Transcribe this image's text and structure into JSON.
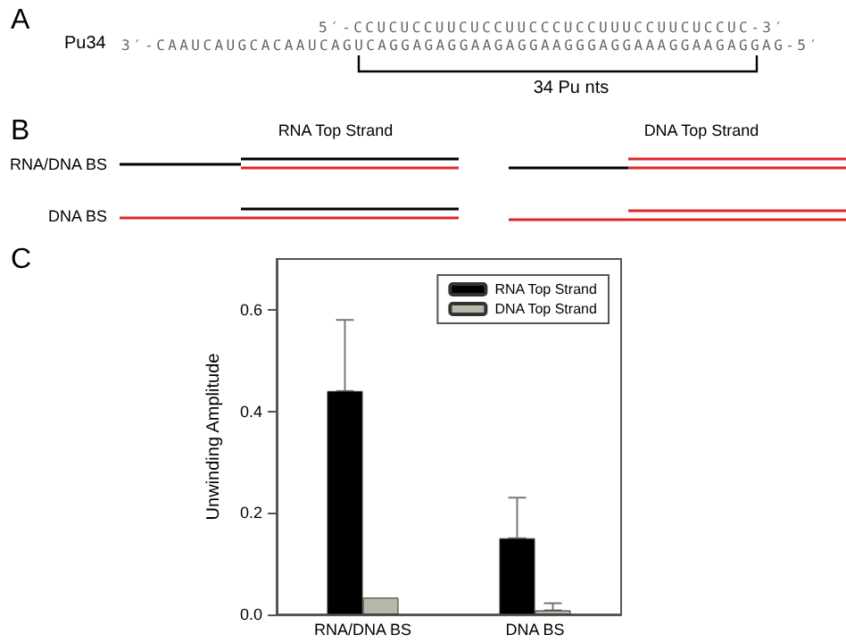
{
  "chart_data": {
    "type": "bar",
    "ylabel": "Unwinding Amplitude",
    "categories": [
      "RNA/DNA BS",
      "DNA BS"
    ],
    "series": [
      {
        "name": "RNA Top Strand",
        "color": "#000000",
        "values": [
          0.44,
          0.15
        ],
        "errors": [
          [
            0.44,
            0.58
          ],
          [
            0.15,
            0.23
          ]
        ]
      },
      {
        "name": "DNA Top Strand",
        "color": "#b8b8a8",
        "values": [
          0.033,
          0.008
        ],
        "errors": [
          null,
          [
            0.008,
            0.022
          ]
        ]
      }
    ],
    "ylim": [
      0,
      0.7
    ],
    "yticks": [
      {
        "value": 0,
        "label": "0.0"
      },
      {
        "value": 0.2,
        "label": "0.2"
      },
      {
        "value": 0.4,
        "label": "0.4"
      },
      {
        "value": 0.6,
        "label": "0.6"
      }
    ],
    "grid": false,
    "legend": "top right",
    "annotations": [
      "A",
      "Pu34",
      "5′-CCUCUCCUUCUCCUUCCCUCCUUUCCUUCUCCUC-3′",
      "3′-CAAUCAUGCACAAUCAGUCAGGAGAGGAAGAGGAAGGGAGGAAAGGAAGAGGAG-5′",
      "34 Pu nts",
      "B",
      "RNA Top Strand",
      "DNA Top Strand",
      "RNA/DNA BS",
      "DNA BS",
      "C"
    ]
  }
}
